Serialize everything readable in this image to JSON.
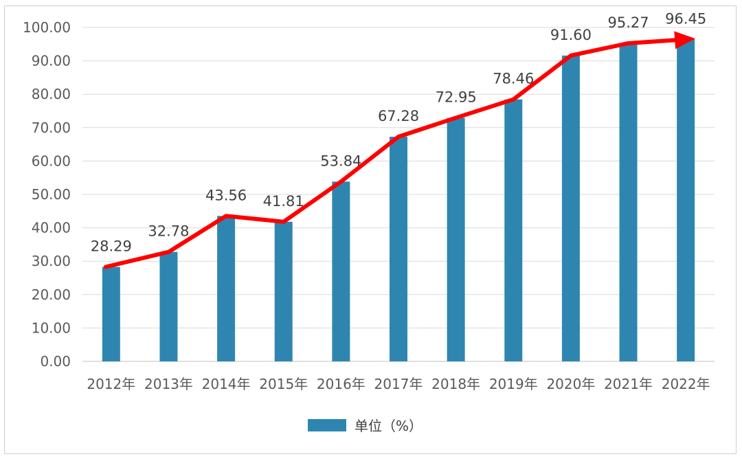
{
  "chart_data": {
    "type": "bar",
    "categories": [
      "2012年",
      "2013年",
      "2014年",
      "2015年",
      "2016年",
      "2017年",
      "2018年",
      "2019年",
      "2020年",
      "2021年",
      "2022年"
    ],
    "series": [
      {
        "name": "单位（%）",
        "values": [
          28.29,
          32.78,
          43.56,
          41.81,
          53.84,
          67.28,
          72.95,
          78.46,
          91.6,
          95.27,
          96.45
        ],
        "labels": [
          "28.29",
          "32.78",
          "43.56",
          "41.81",
          "53.84",
          "67.28",
          "72.95",
          "78.46",
          "91.60",
          "95.27",
          "96.45"
        ],
        "color": "#2e86b0"
      }
    ],
    "trend_line": {
      "color": "#ff0000",
      "arrow": true
    },
    "y_ticks": [
      "0.00",
      "10.00",
      "20.00",
      "30.00",
      "40.00",
      "50.00",
      "60.00",
      "70.00",
      "80.00",
      "90.00",
      "100.00"
    ],
    "ylim": [
      0,
      100
    ],
    "grid": true,
    "legend_position": "bottom",
    "title": "",
    "xlabel": "",
    "ylabel": ""
  }
}
